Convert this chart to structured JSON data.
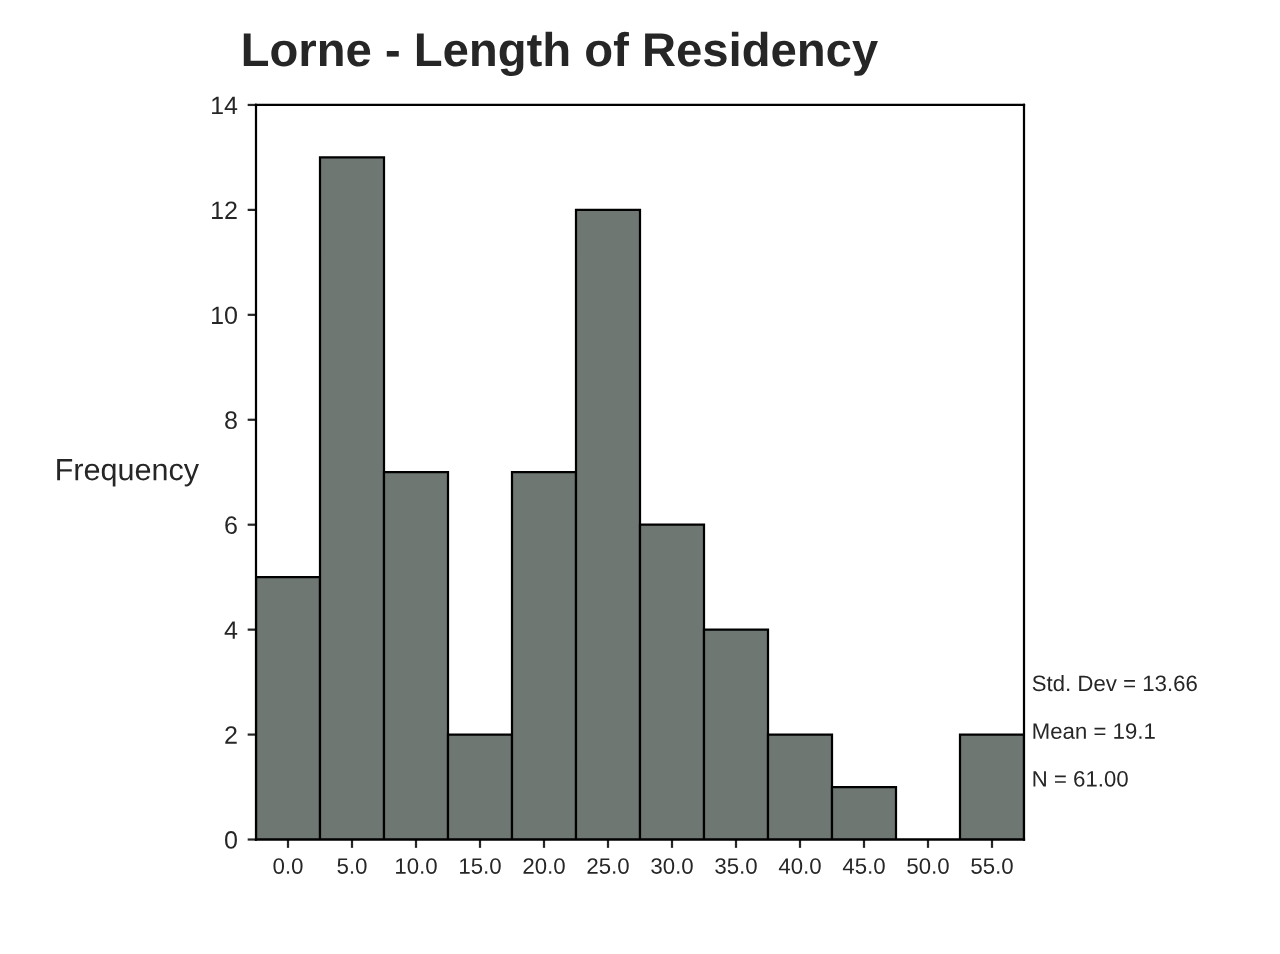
{
  "chart_data": {
    "type": "histogram",
    "title": "Lorne - Length of Residency",
    "ylabel": "Frequency",
    "bins": [
      -2.5,
      2.5,
      7.5,
      12.5,
      17.5,
      22.5,
      27.5,
      32.5,
      37.5,
      42.5,
      47.5,
      52.5,
      57.5
    ],
    "values": [
      5,
      13,
      7,
      2,
      7,
      12,
      6,
      4,
      2,
      1,
      0,
      2
    ],
    "color": "#6e7772",
    "xlim": [
      -2.5,
      57.5
    ],
    "xticks": [
      {
        "value": 0,
        "label": "0.0"
      },
      {
        "value": 5,
        "label": "5.0"
      },
      {
        "value": 10,
        "label": "10.0"
      },
      {
        "value": 15,
        "label": "15.0"
      },
      {
        "value": 20,
        "label": "20.0"
      },
      {
        "value": 25,
        "label": "25.0"
      },
      {
        "value": 30,
        "label": "30.0"
      },
      {
        "value": 35,
        "label": "35.0"
      },
      {
        "value": 40,
        "label": "40.0"
      },
      {
        "value": 45,
        "label": "45.0"
      },
      {
        "value": 50,
        "label": "50.0"
      },
      {
        "value": 55,
        "label": "55.0"
      }
    ],
    "ylim": [
      0,
      14
    ],
    "yticks": [
      0,
      2,
      4,
      6,
      8,
      10,
      12,
      14
    ],
    "grid": false,
    "annotations": [
      "Std. Dev = 13.66",
      "Mean = 19.1",
      "N = 61.00"
    ]
  }
}
